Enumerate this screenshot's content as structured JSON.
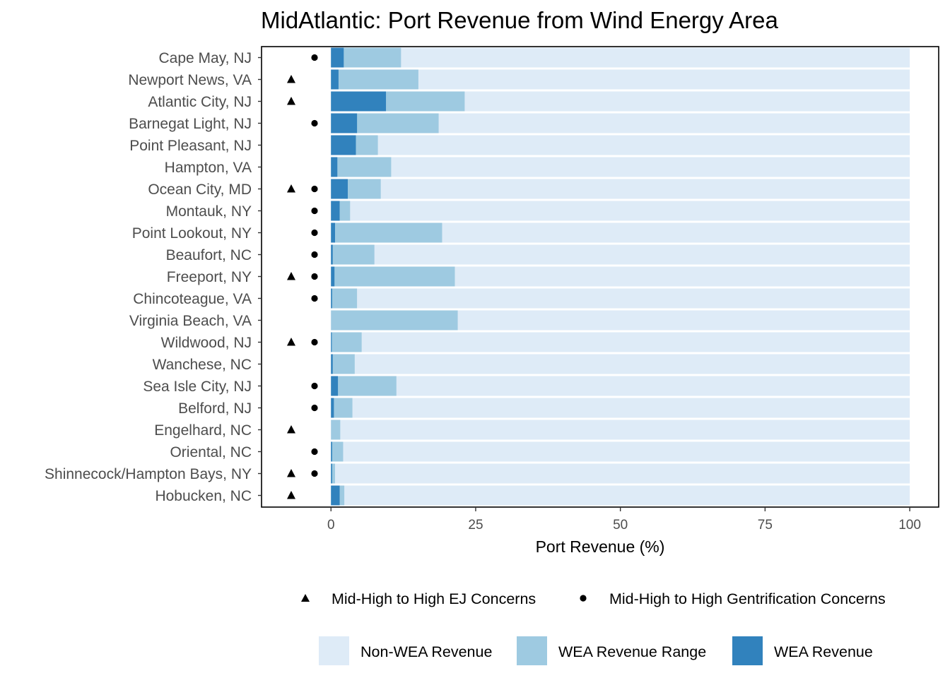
{
  "chart_data": {
    "type": "bar",
    "orientation": "horizontal",
    "stacked": true,
    "title": "MidAtlantic: Port Revenue from Wind Energy Area",
    "xlabel": "Port Revenue (%)",
    "xlim": [
      -12,
      105
    ],
    "x_ticks": [
      "0",
      "25",
      "50",
      "75",
      "100"
    ],
    "grid": false,
    "ports": [
      {
        "name": "Cape May, NJ",
        "wea": 2.2,
        "wea_range_max": 12.1,
        "ej": false,
        "gent": true
      },
      {
        "name": "Newport News, VA",
        "wea": 1.3,
        "wea_range_max": 15.1,
        "ej": true,
        "gent": false
      },
      {
        "name": "Atlantic City, NJ",
        "wea": 9.5,
        "wea_range_max": 23.1,
        "ej": true,
        "gent": false
      },
      {
        "name": "Barnegat Light, NJ",
        "wea": 4.5,
        "wea_range_max": 18.6,
        "ej": false,
        "gent": true
      },
      {
        "name": "Point Pleasant, NJ",
        "wea": 4.3,
        "wea_range_max": 8.1,
        "ej": false,
        "gent": false
      },
      {
        "name": "Hampton, VA",
        "wea": 1.1,
        "wea_range_max": 10.4,
        "ej": false,
        "gent": false
      },
      {
        "name": "Ocean City, MD",
        "wea": 2.9,
        "wea_range_max": 8.6,
        "ej": true,
        "gent": true
      },
      {
        "name": "Montauk, NY",
        "wea": 1.5,
        "wea_range_max": 3.3,
        "ej": false,
        "gent": true
      },
      {
        "name": "Point Lookout, NY",
        "wea": 0.7,
        "wea_range_max": 19.2,
        "ej": false,
        "gent": true
      },
      {
        "name": "Beaufort, NC",
        "wea": 0.3,
        "wea_range_max": 7.5,
        "ej": false,
        "gent": true
      },
      {
        "name": "Freeport, NY",
        "wea": 0.6,
        "wea_range_max": 21.4,
        "ej": true,
        "gent": true
      },
      {
        "name": "Chincoteague, VA",
        "wea": 0.2,
        "wea_range_max": 4.5,
        "ej": false,
        "gent": true
      },
      {
        "name": "Virginia Beach, VA",
        "wea": 0.0,
        "wea_range_max": 21.9,
        "ej": false,
        "gent": false
      },
      {
        "name": "Wildwood, NJ",
        "wea": 0.1,
        "wea_range_max": 5.3,
        "ej": true,
        "gent": true
      },
      {
        "name": "Wanchese, NC",
        "wea": 0.3,
        "wea_range_max": 4.1,
        "ej": false,
        "gent": false
      },
      {
        "name": "Sea Isle City, NJ",
        "wea": 1.2,
        "wea_range_max": 11.3,
        "ej": false,
        "gent": true
      },
      {
        "name": "Belford, NJ",
        "wea": 0.5,
        "wea_range_max": 3.7,
        "ej": false,
        "gent": true
      },
      {
        "name": "Engelhard, NC",
        "wea": 0.0,
        "wea_range_max": 1.6,
        "ej": true,
        "gent": false
      },
      {
        "name": "Oriental, NC",
        "wea": 0.2,
        "wea_range_max": 2.1,
        "ej": false,
        "gent": true
      },
      {
        "name": "Shinnecock/Hampton Bays, NY",
        "wea": 0.2,
        "wea_range_max": 0.7,
        "ej": true,
        "gent": true
      },
      {
        "name": "Hobucken, NC",
        "wea": 1.5,
        "wea_range_max": 2.3,
        "ej": true,
        "gent": false
      }
    ],
    "total": 100,
    "legend": {
      "placement": "bottom",
      "shapes": [
        {
          "label": "Mid-High to High EJ Concerns",
          "symbol": "triangle"
        },
        {
          "label": "Mid-High to High Gentrification Concerns",
          "symbol": "circle"
        }
      ],
      "fills": [
        {
          "label": "Non-WEA Revenue",
          "color": "#deebf7"
        },
        {
          "label": "WEA Revenue Range",
          "color": "#9ecae1"
        },
        {
          "label": "WEA Revenue",
          "color": "#3182bd"
        }
      ]
    },
    "colors": {
      "non_wea": "#deebf7",
      "wea_range": "#9ecae1",
      "wea": "#3182bd",
      "marker": "#000000"
    }
  }
}
